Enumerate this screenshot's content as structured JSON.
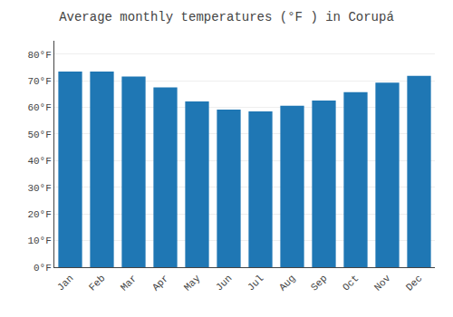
{
  "chart_data": {
    "type": "bar",
    "title": "Average monthly temperatures (°F ) in Corupá",
    "categories": [
      "Jan",
      "Feb",
      "Mar",
      "Apr",
      "May",
      "Jun",
      "Jul",
      "Aug",
      "Sep",
      "Oct",
      "Nov",
      "Dec"
    ],
    "values": [
      73.4,
      73.4,
      71.6,
      67.5,
      62.2,
      59.2,
      58.5,
      60.6,
      62.6,
      65.7,
      69.3,
      71.8
    ],
    "ylim": [
      0,
      85
    ],
    "yticks": [
      {
        "value": 0,
        "label": "0°F"
      },
      {
        "value": 10,
        "label": "10°F"
      },
      {
        "value": 20,
        "label": "20°F"
      },
      {
        "value": 30,
        "label": "30°F"
      },
      {
        "value": 40,
        "label": "40°F"
      },
      {
        "value": 50,
        "label": "50°F"
      },
      {
        "value": 60,
        "label": "60°F"
      },
      {
        "value": 70,
        "label": "70°F"
      },
      {
        "value": 80,
        "label": "80°F"
      }
    ],
    "grid": true
  }
}
